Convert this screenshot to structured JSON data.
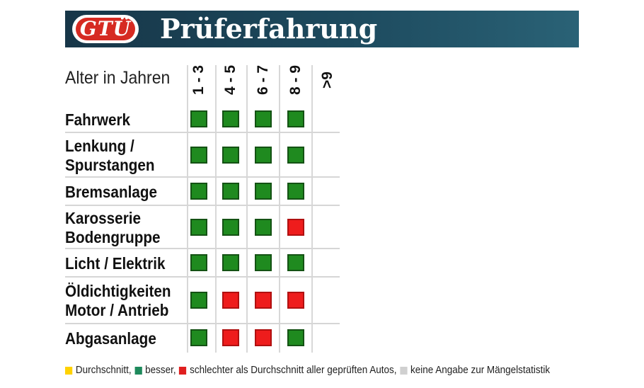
{
  "header": {
    "logo_text": "GTÜ",
    "title": "Prüferfahrung"
  },
  "chart_data": {
    "type": "table",
    "age_axis_label": "Alter in Jahren",
    "columns": [
      "1 - 3",
      "4 - 5",
      "6 - 7",
      "8 - 9",
      ">9"
    ],
    "rows": [
      {
        "lines": [
          "Fahrwerk"
        ],
        "ratings": [
          "besser",
          "besser",
          "besser",
          "besser",
          null
        ]
      },
      {
        "lines": [
          "Lenkung /",
          "Spurstangen"
        ],
        "ratings": [
          "besser",
          "besser",
          "besser",
          "besser",
          null
        ]
      },
      {
        "lines": [
          "Bremsanlage"
        ],
        "ratings": [
          "besser",
          "besser",
          "besser",
          "besser",
          null
        ]
      },
      {
        "lines": [
          "Karosserie",
          "Bodengruppe"
        ],
        "ratings": [
          "besser",
          "besser",
          "besser",
          "schlechter",
          null
        ]
      },
      {
        "lines": [
          "Licht / Elektrik"
        ],
        "ratings": [
          "besser",
          "besser",
          "besser",
          "besser",
          null
        ]
      },
      {
        "lines": [
          "Öldichtigkeiten",
          "Motor / Antrieb"
        ],
        "ratings": [
          "besser",
          "schlechter",
          "schlechter",
          "schlechter",
          null
        ]
      },
      {
        "lines": [
          "Abgasanlage"
        ],
        "ratings": [
          "besser",
          "schlechter",
          "schlechter",
          "besser",
          null
        ]
      }
    ],
    "rating_colors": {
      "besser": "#1f8a1f",
      "schlechter": "#ee1c1c",
      "durchschnitt": "#ffd200",
      "keine_angabe": "#d0d0d0"
    }
  },
  "legend": [
    {
      "label": "Durchschnitt,",
      "color": "#ffd200"
    },
    {
      "label": "besser,",
      "color": "#1e8a5c"
    },
    {
      "label": "schlechter als Durchschnitt aller geprüften Autos,",
      "color": "#e01f1f"
    },
    {
      "label": "keine Angabe zur Mängelstatistik",
      "color": "#d0d0d0"
    }
  ]
}
